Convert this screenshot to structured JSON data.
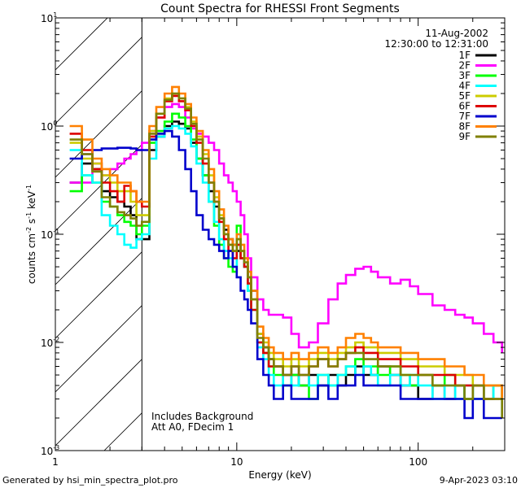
{
  "chart_data": {
    "type": "line",
    "title": "Count Spectra for RHESSI Front Segments",
    "xlabel": "Energy (keV)",
    "ylabel_main": "counts cm",
    "ylabel_sup1": "-2",
    "ylabel_mid": " s",
    "ylabel_sup2": "-1",
    "ylabel_end": " keV",
    "ylabel_sup3": "-1",
    "xscale": "log",
    "yscale": "log",
    "xlim": [
      1,
      300
    ],
    "ylim": [
      0.001,
      10
    ],
    "hatched_below_keV": 3,
    "x_ticks": [
      {
        "value": 1,
        "label": "1"
      },
      {
        "value": 10,
        "label": "10"
      },
      {
        "value": 100,
        "label": "100"
      }
    ],
    "y_ticks": [
      {
        "value": 0.001,
        "base": "10",
        "exp": "-3"
      },
      {
        "value": 0.01,
        "base": "10",
        "exp": "-2"
      },
      {
        "value": 0.1,
        "base": "10",
        "exp": "-1"
      },
      {
        "value": 1,
        "base": "10",
        "exp": "0"
      },
      {
        "value": 10,
        "base": "10",
        "exp": "1"
      }
    ],
    "date": "11-Aug-2002",
    "time_range": "12:30:00 to 12:31:00",
    "note_line1": "Includes Background",
    "note_line2": "Att A0, FDecim 1",
    "legend_position": "top-right",
    "series": [
      {
        "name": "1F",
        "color": "#000000",
        "x": [
          1.2,
          1.4,
          1.6,
          1.8,
          2.0,
          2.2,
          2.4,
          2.6,
          2.8,
          3.0,
          3.3,
          3.6,
          4.0,
          4.4,
          4.8,
          5.2,
          5.6,
          6.0,
          6.5,
          7.0,
          7.5,
          8.0,
          8.5,
          9.0,
          9.5,
          10,
          10.5,
          11,
          11.5,
          12,
          13,
          14,
          15,
          16,
          18,
          20,
          22,
          25,
          28,
          32,
          36,
          40,
          45,
          50,
          55,
          60,
          70,
          80,
          90,
          100,
          120,
          140,
          160,
          180,
          200,
          230,
          260,
          290
        ],
        "y": [
          0.3,
          0.45,
          0.4,
          0.25,
          0.22,
          0.2,
          0.18,
          0.15,
          0.09,
          0.09,
          0.6,
          0.8,
          1.0,
          1.1,
          1.05,
          0.95,
          0.7,
          0.5,
          0.35,
          0.25,
          0.18,
          0.14,
          0.11,
          0.09,
          0.08,
          0.07,
          0.06,
          0.05,
          0.04,
          0.03,
          0.012,
          0.009,
          0.007,
          0.006,
          0.005,
          0.005,
          0.004,
          0.005,
          0.004,
          0.005,
          0.004,
          0.005,
          0.006,
          0.005,
          0.005,
          0.006,
          0.005,
          0.004,
          0.004,
          0.003,
          0.004,
          0.003,
          0.004,
          0.003,
          0.004,
          0.003,
          0.004,
          0.003
        ]
      },
      {
        "name": "2F",
        "color": "#ff00ff",
        "x": [
          1.2,
          1.4,
          1.6,
          1.8,
          2.0,
          2.2,
          2.4,
          2.6,
          2.8,
          3.0,
          3.3,
          3.6,
          4.0,
          4.4,
          4.8,
          5.2,
          5.6,
          6.0,
          6.5,
          7.0,
          7.5,
          8.0,
          8.5,
          9.0,
          9.5,
          10,
          10.5,
          11,
          11.5,
          12,
          13,
          14,
          15,
          16,
          18,
          20,
          22,
          25,
          28,
          32,
          36,
          40,
          45,
          50,
          55,
          60,
          70,
          80,
          90,
          100,
          120,
          140,
          160,
          180,
          200,
          230,
          260,
          290
        ],
        "y": [
          0.3,
          0.3,
          0.45,
          0.35,
          0.4,
          0.45,
          0.5,
          0.55,
          0.6,
          0.7,
          0.9,
          1.2,
          1.5,
          1.6,
          1.5,
          1.2,
          0.95,
          0.85,
          0.8,
          0.7,
          0.6,
          0.45,
          0.35,
          0.3,
          0.25,
          0.2,
          0.15,
          0.1,
          0.06,
          0.04,
          0.025,
          0.02,
          0.018,
          0.018,
          0.017,
          0.012,
          0.009,
          0.01,
          0.015,
          0.025,
          0.035,
          0.042,
          0.048,
          0.05,
          0.045,
          0.04,
          0.035,
          0.038,
          0.033,
          0.028,
          0.022,
          0.02,
          0.018,
          0.017,
          0.015,
          0.012,
          0.01,
          0.008
        ]
      },
      {
        "name": "3F",
        "color": "#00ff00",
        "x": [
          1.2,
          1.4,
          1.6,
          1.8,
          2.0,
          2.2,
          2.4,
          2.6,
          2.8,
          3.0,
          3.3,
          3.6,
          4.0,
          4.4,
          4.8,
          5.2,
          5.6,
          6.0,
          6.5,
          7.0,
          7.5,
          8.0,
          8.5,
          9.0,
          9.5,
          10,
          10.5,
          11,
          11.5,
          12,
          13,
          14,
          15,
          16,
          18,
          20,
          22,
          25,
          28,
          32,
          36,
          40,
          45,
          50,
          55,
          60,
          70,
          80,
          90,
          100,
          120,
          140,
          160,
          180,
          200,
          230,
          260,
          290
        ],
        "y": [
          0.25,
          0.35,
          0.3,
          0.2,
          0.18,
          0.15,
          0.13,
          0.12,
          0.1,
          0.12,
          0.7,
          0.9,
          1.1,
          1.3,
          1.2,
          1.0,
          0.75,
          0.5,
          0.35,
          0.2,
          0.12,
          0.08,
          0.06,
          0.05,
          0.045,
          0.12,
          0.06,
          0.05,
          0.03,
          0.02,
          0.01,
          0.008,
          0.006,
          0.005,
          0.004,
          0.005,
          0.004,
          0.003,
          0.005,
          0.004,
          0.005,
          0.006,
          0.007,
          0.006,
          0.006,
          0.005,
          0.006,
          0.005,
          0.004,
          0.005,
          0.004,
          0.005,
          0.004,
          0.003,
          0.004,
          0.003,
          0.004,
          0.003
        ]
      },
      {
        "name": "4F",
        "color": "#00ffff",
        "x": [
          1.2,
          1.4,
          1.6,
          1.8,
          2.0,
          2.2,
          2.4,
          2.6,
          2.8,
          3.0,
          3.3,
          3.6,
          4.0,
          4.4,
          4.8,
          5.2,
          5.6,
          6.0,
          6.5,
          7.0,
          7.5,
          8.0,
          8.5,
          9.0,
          9.5,
          10,
          10.5,
          11,
          11.5,
          12,
          13,
          14,
          15,
          16,
          18,
          20,
          22,
          25,
          28,
          32,
          36,
          40,
          45,
          50,
          55,
          60,
          70,
          80,
          90,
          100,
          120,
          140,
          160,
          180,
          200,
          230,
          260,
          290
        ],
        "y": [
          0.6,
          0.35,
          0.3,
          0.15,
          0.12,
          0.1,
          0.08,
          0.075,
          0.09,
          0.1,
          0.5,
          0.8,
          0.95,
          1.0,
          0.95,
          0.85,
          0.65,
          0.45,
          0.3,
          0.2,
          0.13,
          0.09,
          0.07,
          0.06,
          0.05,
          0.1,
          0.07,
          0.05,
          0.03,
          0.02,
          0.009,
          0.007,
          0.005,
          0.004,
          0.005,
          0.004,
          0.005,
          0.004,
          0.005,
          0.004,
          0.005,
          0.006,
          0.005,
          0.006,
          0.005,
          0.004,
          0.005,
          0.004,
          0.005,
          0.004,
          0.003,
          0.004,
          0.003,
          0.004,
          0.003,
          0.004,
          0.003,
          0.002
        ]
      },
      {
        "name": "5F",
        "color": "#cccc00",
        "x": [
          1.2,
          1.4,
          1.6,
          1.8,
          2.0,
          2.2,
          2.4,
          2.6,
          2.8,
          3.0,
          3.3,
          3.6,
          4.0,
          4.4,
          4.8,
          5.2,
          5.6,
          6.0,
          6.5,
          7.0,
          7.5,
          8.0,
          8.5,
          9.0,
          9.5,
          10,
          10.5,
          11,
          11.5,
          12,
          13,
          14,
          15,
          16,
          18,
          20,
          22,
          25,
          28,
          32,
          36,
          40,
          45,
          50,
          55,
          60,
          70,
          80,
          90,
          100,
          120,
          140,
          160,
          180,
          200,
          230,
          260,
          290
        ],
        "y": [
          0.7,
          0.5,
          0.45,
          0.35,
          0.3,
          0.25,
          0.25,
          0.2,
          0.15,
          0.15,
          0.9,
          1.3,
          1.8,
          2.0,
          1.8,
          1.5,
          1.1,
          0.8,
          0.55,
          0.35,
          0.22,
          0.15,
          0.1,
          0.08,
          0.07,
          0.09,
          0.07,
          0.06,
          0.04,
          0.025,
          0.012,
          0.01,
          0.008,
          0.007,
          0.006,
          0.007,
          0.006,
          0.007,
          0.008,
          0.007,
          0.008,
          0.009,
          0.01,
          0.009,
          0.009,
          0.008,
          0.008,
          0.007,
          0.007,
          0.006,
          0.006,
          0.005,
          0.005,
          0.005,
          0.004,
          0.004,
          0.004,
          0.003
        ]
      },
      {
        "name": "6F",
        "color": "#dd0000",
        "x": [
          1.2,
          1.4,
          1.6,
          1.8,
          2.0,
          2.2,
          2.4,
          2.6,
          2.8,
          3.0,
          3.3,
          3.6,
          4.0,
          4.4,
          4.8,
          5.2,
          5.6,
          6.0,
          6.5,
          7.0,
          7.5,
          8.0,
          8.5,
          9.0,
          9.5,
          10,
          10.5,
          11,
          11.5,
          12,
          13,
          14,
          15,
          16,
          18,
          20,
          22,
          25,
          28,
          32,
          36,
          40,
          45,
          50,
          55,
          60,
          70,
          80,
          90,
          100,
          120,
          140,
          160,
          180,
          200,
          230,
          260,
          290
        ],
        "y": [
          0.85,
          0.6,
          0.4,
          0.3,
          0.25,
          0.2,
          0.28,
          0.25,
          0.2,
          0.18,
          0.8,
          1.2,
          1.7,
          1.9,
          1.7,
          1.4,
          1.0,
          0.7,
          0.45,
          0.3,
          0.2,
          0.13,
          0.09,
          0.07,
          0.06,
          0.08,
          0.06,
          0.05,
          0.035,
          0.02,
          0.01,
          0.008,
          0.006,
          0.006,
          0.005,
          0.006,
          0.005,
          0.006,
          0.007,
          0.006,
          0.007,
          0.008,
          0.009,
          0.008,
          0.008,
          0.007,
          0.007,
          0.006,
          0.006,
          0.005,
          0.005,
          0.005,
          0.004,
          0.004,
          0.004,
          0.003,
          0.003,
          0.003
        ]
      },
      {
        "name": "7F",
        "color": "#0000cc",
        "x": [
          1.2,
          1.4,
          1.6,
          1.8,
          2.0,
          2.2,
          2.4,
          2.6,
          2.8,
          3.0,
          3.3,
          3.6,
          4.0,
          4.4,
          4.8,
          5.2,
          5.6,
          6.0,
          6.5,
          7.0,
          7.5,
          8.0,
          8.5,
          9.0,
          9.5,
          10,
          10.5,
          11,
          11.5,
          12,
          13,
          14,
          15,
          16,
          18,
          20,
          22,
          25,
          28,
          32,
          36,
          40,
          45,
          50,
          55,
          60,
          70,
          80,
          90,
          100,
          120,
          140,
          160,
          180,
          200,
          230,
          260,
          290
        ],
        "y": [
          0.5,
          0.55,
          0.6,
          0.62,
          0.62,
          0.63,
          0.63,
          0.62,
          0.6,
          0.6,
          0.75,
          0.85,
          0.9,
          0.8,
          0.6,
          0.4,
          0.25,
          0.15,
          0.11,
          0.09,
          0.08,
          0.07,
          0.06,
          0.07,
          0.05,
          0.04,
          0.03,
          0.025,
          0.02,
          0.015,
          0.007,
          0.005,
          0.004,
          0.003,
          0.004,
          0.003,
          0.003,
          0.003,
          0.004,
          0.003,
          0.004,
          0.004,
          0.005,
          0.004,
          0.004,
          0.004,
          0.004,
          0.003,
          0.003,
          0.003,
          0.003,
          0.003,
          0.003,
          0.002,
          0.003,
          0.002,
          0.002,
          0.002
        ]
      },
      {
        "name": "8F",
        "color": "#ff8000",
        "x": [
          1.2,
          1.4,
          1.6,
          1.8,
          2.0,
          2.2,
          2.4,
          2.6,
          2.8,
          3.0,
          3.3,
          3.6,
          4.0,
          4.4,
          4.8,
          5.2,
          5.6,
          6.0,
          6.5,
          7.0,
          7.5,
          8.0,
          8.5,
          9.0,
          9.5,
          10,
          10.5,
          11,
          11.5,
          12,
          13,
          14,
          15,
          16,
          18,
          20,
          22,
          25,
          28,
          32,
          36,
          40,
          45,
          50,
          55,
          60,
          70,
          80,
          90,
          100,
          120,
          140,
          160,
          180,
          200,
          230,
          260,
          290
        ],
        "y": [
          1.0,
          0.75,
          0.5,
          0.4,
          0.35,
          0.3,
          0.3,
          0.25,
          0.2,
          0.2,
          1.0,
          1.5,
          2.0,
          2.3,
          2.0,
          1.6,
          1.2,
          0.9,
          0.6,
          0.4,
          0.25,
          0.17,
          0.12,
          0.09,
          0.08,
          0.1,
          0.08,
          0.06,
          0.045,
          0.03,
          0.014,
          0.011,
          0.009,
          0.008,
          0.007,
          0.008,
          0.007,
          0.008,
          0.009,
          0.008,
          0.009,
          0.011,
          0.012,
          0.011,
          0.01,
          0.009,
          0.009,
          0.008,
          0.008,
          0.007,
          0.007,
          0.006,
          0.006,
          0.005,
          0.005,
          0.004,
          0.004,
          0.003
        ]
      },
      {
        "name": "9F",
        "color": "#808000",
        "x": [
          1.2,
          1.4,
          1.6,
          1.8,
          2.0,
          2.2,
          2.4,
          2.6,
          2.8,
          3.0,
          3.3,
          3.6,
          4.0,
          4.4,
          4.8,
          5.2,
          5.6,
          6.0,
          6.5,
          7.0,
          7.5,
          8.0,
          8.5,
          9.0,
          9.5,
          10,
          10.5,
          11,
          11.5,
          12,
          13,
          14,
          15,
          16,
          18,
          20,
          22,
          25,
          28,
          32,
          36,
          40,
          45,
          50,
          55,
          60,
          70,
          80,
          90,
          100,
          120,
          140,
          160,
          180,
          200,
          230,
          260,
          290
        ],
        "y": [
          0.75,
          0.55,
          0.38,
          0.22,
          0.18,
          0.16,
          0.15,
          0.14,
          0.12,
          0.13,
          0.85,
          1.3,
          1.75,
          2.0,
          1.8,
          1.45,
          1.05,
          0.75,
          0.5,
          0.3,
          0.2,
          0.14,
          0.1,
          0.08,
          0.07,
          0.09,
          0.07,
          0.055,
          0.04,
          0.025,
          0.011,
          0.009,
          0.007,
          0.006,
          0.005,
          0.006,
          0.005,
          0.006,
          0.007,
          0.006,
          0.007,
          0.008,
          0.008,
          0.007,
          0.007,
          0.006,
          0.006,
          0.005,
          0.005,
          0.005,
          0.004,
          0.004,
          0.004,
          0.003,
          0.004,
          0.003,
          0.003,
          0.002
        ]
      }
    ]
  },
  "footer": {
    "generated_by": "Generated by hsi_min_spectra_plot.pro",
    "timestamp": "9-Apr-2023 03:10"
  }
}
